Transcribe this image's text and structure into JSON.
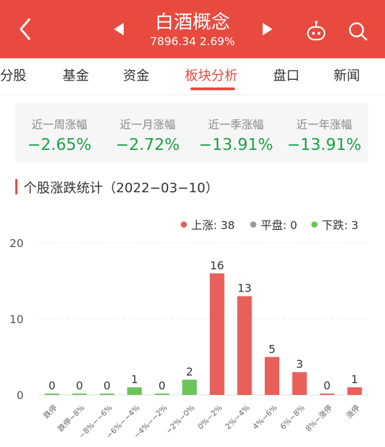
{
  "header": {
    "title": "白酒概念",
    "subtitle": "7896.34 2.69%"
  },
  "tabs": [
    {
      "label": "分股",
      "active": false
    },
    {
      "label": "基金",
      "active": false
    },
    {
      "label": "资金",
      "active": false
    },
    {
      "label": "板块分析",
      "active": true
    },
    {
      "label": "盘口",
      "active": false
    },
    {
      "label": "新闻",
      "active": false
    }
  ],
  "performance": [
    {
      "label": "近一周涨幅",
      "value": "−2.65%"
    },
    {
      "label": "近一月涨幅",
      "value": "−2.72%"
    },
    {
      "label": "近一季涨幅",
      "value": "−13.91%"
    },
    {
      "label": "近一年涨幅",
      "value": "−13.91%"
    }
  ],
  "section": {
    "title": "个股涨跌统计（2022−03−10）"
  },
  "legend": [
    {
      "label": "上涨: 38",
      "color": "#e8605a"
    },
    {
      "label": "平盘: 0",
      "color": "#999999"
    },
    {
      "label": "下跌: 3",
      "color": "#6cc45a"
    }
  ],
  "colors": {
    "accent": "#e94a3f",
    "up": "#e8605a",
    "down": "#6cc45a",
    "neutral_perf": "#1aa14a"
  },
  "chart_data": {
    "type": "bar",
    "categories": [
      "跌停",
      "跌停−8%",
      "−8%−−6%",
      "−6%−−4%",
      "−4%−−2%",
      "−2%−0%",
      "0%−2%",
      "2%−4%",
      "4%−6%",
      "6%−8%",
      "8%−涨停",
      "涨停"
    ],
    "values": [
      0,
      0,
      0,
      1,
      0,
      2,
      16,
      13,
      5,
      3,
      0,
      1
    ],
    "bar_colors": [
      "down",
      "down",
      "down",
      "down",
      "down",
      "down",
      "up",
      "up",
      "up",
      "up",
      "up",
      "up"
    ],
    "ylim": [
      0,
      20
    ],
    "yticks": [
      0,
      10,
      20
    ],
    "grid": true
  }
}
